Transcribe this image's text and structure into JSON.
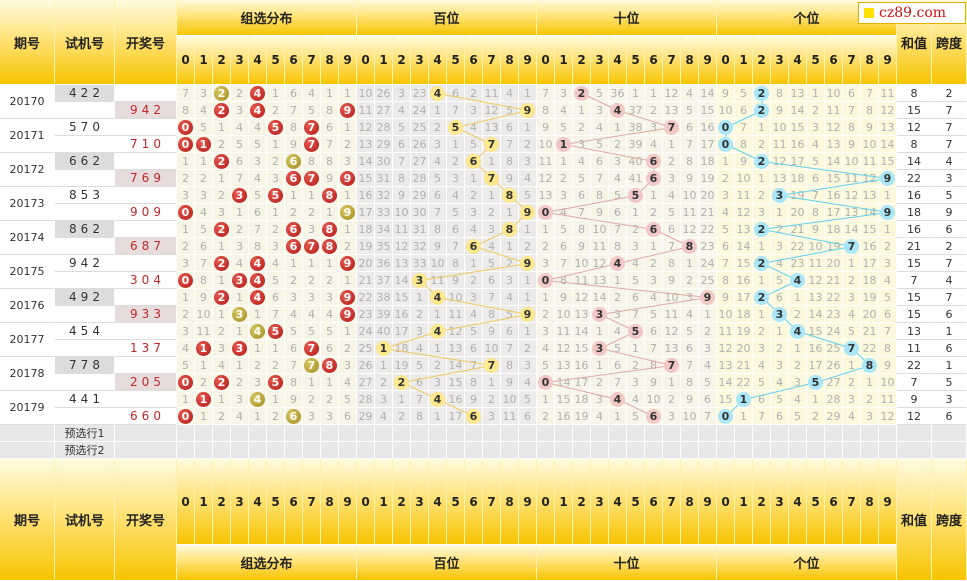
{
  "logo": "cz89.com",
  "headers": {
    "period": "期号",
    "trial": "试机号",
    "draw": "开奖号",
    "sections": [
      "组选分布",
      "百位",
      "十位",
      "个位"
    ],
    "sum": "和值",
    "span": "跨度"
  },
  "digits": [
    0,
    1,
    2,
    3,
    4,
    5,
    6,
    7,
    8,
    9
  ],
  "preselect": [
    "预选行1",
    "预选行2"
  ],
  "rows": [
    {
      "period": "20170",
      "trial": "422",
      "cells": [
        7,
        3,
        2,
        2,
        4,
        1,
        6,
        4,
        1,
        1,
        10,
        26,
        3,
        23,
        4,
        6,
        2,
        11,
        4,
        1,
        7,
        3,
        2,
        5,
        36,
        1,
        1,
        12,
        4,
        14,
        9,
        5,
        2,
        8,
        13,
        1,
        10,
        6,
        7,
        11
      ],
      "sum": 8,
      "span": 2
    },
    {
      "draw": "942",
      "cells": [
        8,
        4,
        2,
        3,
        4,
        2,
        7,
        5,
        8,
        9,
        11,
        27,
        4,
        24,
        1,
        7,
        3,
        12,
        5,
        9,
        8,
        4,
        1,
        3,
        4,
        37,
        2,
        13,
        5,
        15,
        10,
        6,
        2,
        9,
        14,
        2,
        11,
        7,
        8,
        12
      ],
      "sum": 15,
      "span": 7
    },
    {
      "period": "20171",
      "trial": "570",
      "cells": [
        0,
        5,
        1,
        4,
        4,
        5,
        8,
        7,
        6,
        1,
        12,
        28,
        5,
        25,
        2,
        5,
        4,
        13,
        6,
        1,
        9,
        5,
        2,
        4,
        1,
        38,
        3,
        7,
        6,
        16,
        0,
        7,
        1,
        10,
        15,
        3,
        12,
        8,
        9,
        13
      ],
      "sum": 12,
      "span": 7
    },
    {
      "draw": "710",
      "cells": [
        0,
        1,
        2,
        5,
        5,
        1,
        9,
        7,
        7,
        2,
        13,
        29,
        6,
        26,
        3,
        1,
        5,
        7,
        7,
        2,
        10,
        1,
        3,
        5,
        2,
        39,
        4,
        1,
        7,
        17,
        0,
        8,
        2,
        11,
        16,
        4,
        13,
        9,
        10,
        14
      ],
      "sum": 8,
      "span": 7
    },
    {
      "period": "20172",
      "trial": "662",
      "cells": [
        1,
        1,
        2,
        6,
        3,
        2,
        6,
        8,
        8,
        3,
        14,
        30,
        7,
        27,
        4,
        2,
        6,
        1,
        8,
        3,
        11,
        1,
        4,
        6,
        3,
        40,
        6,
        2,
        8,
        18,
        1,
        9,
        2,
        12,
        17,
        5,
        14,
        10,
        11,
        15
      ],
      "sum": 14,
      "span": 4
    },
    {
      "draw": "769",
      "cells": [
        2,
        2,
        1,
        7,
        4,
        3,
        6,
        7,
        9,
        9,
        15,
        31,
        8,
        28,
        5,
        3,
        1,
        7,
        9,
        4,
        12,
        2,
        5,
        7,
        4,
        41,
        6,
        3,
        9,
        19,
        2,
        10,
        1,
        13,
        18,
        6,
        15,
        11,
        12,
        9
      ],
      "sum": 22,
      "span": 3
    },
    {
      "period": "20173",
      "trial": "853",
      "cells": [
        3,
        3,
        2,
        3,
        5,
        5,
        1,
        1,
        8,
        1,
        16,
        32,
        9,
        29,
        6,
        4,
        2,
        1,
        8,
        5,
        13,
        3,
        6,
        8,
        5,
        5,
        1,
        4,
        10,
        20,
        3,
        11,
        2,
        3,
        19,
        7,
        16,
        12,
        13,
        1
      ],
      "sum": 16,
      "span": 5
    },
    {
      "draw": "909",
      "cells": [
        0,
        4,
        3,
        1,
        6,
        1,
        2,
        2,
        1,
        9,
        17,
        33,
        10,
        30,
        7,
        5,
        3,
        2,
        1,
        9,
        0,
        4,
        7,
        9,
        6,
        1,
        2,
        5,
        11,
        21,
        4,
        12,
        3,
        1,
        20,
        8,
        17,
        13,
        14,
        9
      ],
      "sum": 18,
      "span": 9
    },
    {
      "period": "20174",
      "trial": "862",
      "cells": [
        1,
        5,
        2,
        2,
        7,
        2,
        6,
        3,
        8,
        1,
        18,
        34,
        11,
        31,
        8,
        6,
        4,
        3,
        8,
        1,
        1,
        5,
        8,
        10,
        7,
        2,
        6,
        6,
        12,
        22,
        5,
        13,
        2,
        2,
        21,
        9,
        18,
        14,
        15,
        1
      ],
      "sum": 16,
      "span": 6
    },
    {
      "draw": "687",
      "cells": [
        2,
        6,
        1,
        3,
        8,
        3,
        6,
        7,
        8,
        2,
        19,
        35,
        12,
        32,
        9,
        7,
        6,
        4,
        1,
        2,
        2,
        6,
        9,
        11,
        8,
        3,
        1,
        7,
        8,
        23,
        6,
        14,
        1,
        3,
        22,
        10,
        19,
        7,
        16,
        2
      ],
      "sum": 21,
      "span": 2
    },
    {
      "period": "20175",
      "trial": "942",
      "cells": [
        3,
        7,
        2,
        4,
        4,
        4,
        1,
        1,
        1,
        9,
        20,
        36,
        13,
        33,
        10,
        8,
        1,
        5,
        2,
        9,
        3,
        7,
        10,
        12,
        4,
        4,
        2,
        8,
        1,
        24,
        7,
        15,
        2,
        4,
        23,
        11,
        20,
        1,
        17,
        3
      ],
      "sum": 15,
      "span": 7
    },
    {
      "draw": "304",
      "cells": [
        0,
        8,
        1,
        3,
        4,
        5,
        2,
        2,
        2,
        1,
        21,
        37,
        14,
        3,
        11,
        9,
        2,
        6,
        3,
        1,
        0,
        8,
        11,
        13,
        1,
        5,
        3,
        9,
        2,
        25,
        8,
        16,
        1,
        5,
        4,
        12,
        21,
        2,
        18,
        4
      ],
      "sum": 7,
      "span": 4
    },
    {
      "period": "20176",
      "trial": "492",
      "cells": [
        1,
        9,
        2,
        1,
        4,
        6,
        3,
        3,
        3,
        9,
        22,
        38,
        15,
        1,
        4,
        10,
        3,
        7,
        4,
        1,
        1,
        9,
        12,
        14,
        2,
        6,
        4,
        10,
        3,
        9,
        9,
        17,
        2,
        6,
        1,
        13,
        22,
        3,
        19,
        5
      ],
      "sum": 15,
      "span": 7
    },
    {
      "draw": "933",
      "cells": [
        2,
        10,
        1,
        3,
        1,
        7,
        4,
        4,
        4,
        9,
        23,
        39,
        16,
        2,
        1,
        11,
        4,
        8,
        5,
        9,
        2,
        10,
        13,
        3,
        3,
        7,
        5,
        11,
        4,
        1,
        10,
        18,
        1,
        3,
        2,
        14,
        23,
        4,
        20,
        6
      ],
      "sum": 15,
      "span": 6
    },
    {
      "period": "20177",
      "trial": "454",
      "cells": [
        3,
        11,
        2,
        1,
        4,
        5,
        5,
        5,
        5,
        1,
        24,
        40,
        17,
        3,
        4,
        12,
        5,
        9,
        6,
        1,
        3,
        11,
        14,
        1,
        4,
        5,
        6,
        12,
        5,
        2,
        11,
        19,
        2,
        1,
        4,
        15,
        24,
        5,
        21,
        7
      ],
      "sum": 13,
      "span": 1
    },
    {
      "draw": "137",
      "cells": [
        4,
        1,
        3,
        3,
        1,
        1,
        6,
        7,
        6,
        2,
        25,
        1,
        18,
        4,
        1,
        13,
        6,
        10,
        7,
        2,
        4,
        12,
        15,
        3,
        5,
        1,
        7,
        13,
        6,
        3,
        12,
        20,
        3,
        2,
        1,
        16,
        25,
        7,
        22,
        8
      ],
      "sum": 11,
      "span": 6
    },
    {
      "period": "20178",
      "trial": "778",
      "cells": [
        5,
        1,
        4,
        1,
        2,
        2,
        7,
        7,
        8,
        3,
        26,
        1,
        19,
        5,
        2,
        14,
        7,
        7,
        8,
        3,
        5,
        13,
        16,
        1,
        6,
        2,
        8,
        7,
        7,
        4,
        13,
        21,
        4,
        3,
        2,
        17,
        26,
        1,
        8,
        9
      ],
      "sum": 22,
      "span": 1
    },
    {
      "draw": "205",
      "cells": [
        0,
        2,
        2,
        2,
        3,
        5,
        8,
        1,
        1,
        4,
        27,
        2,
        2,
        6,
        3,
        15,
        8,
        1,
        9,
        4,
        0,
        14,
        17,
        2,
        7,
        3,
        9,
        1,
        8,
        5,
        14,
        22,
        5,
        4,
        3,
        5,
        27,
        2,
        1,
        10
      ],
      "sum": 7,
      "span": 5
    },
    {
      "period": "20179",
      "trial": "441",
      "cells": [
        1,
        1,
        1,
        3,
        4,
        1,
        9,
        2,
        2,
        5,
        28,
        3,
        1,
        7,
        4,
        16,
        9,
        2,
        10,
        5,
        1,
        15,
        18,
        3,
        4,
        4,
        10,
        2,
        9,
        6,
        15,
        1,
        6,
        5,
        4,
        1,
        28,
        3,
        2,
        11
      ],
      "sum": 9,
      "span": 3
    },
    {
      "draw": "660",
      "cells": [
        0,
        1,
        2,
        4,
        1,
        2,
        6,
        3,
        3,
        6,
        29,
        4,
        2,
        8,
        1,
        17,
        6,
        3,
        11,
        6,
        2,
        16,
        19,
        4,
        1,
        5,
        6,
        3,
        10,
        7,
        0,
        1,
        7,
        6,
        5,
        2,
        29,
        4,
        3,
        12
      ],
      "sum": 12,
      "span": 6
    }
  ]
}
